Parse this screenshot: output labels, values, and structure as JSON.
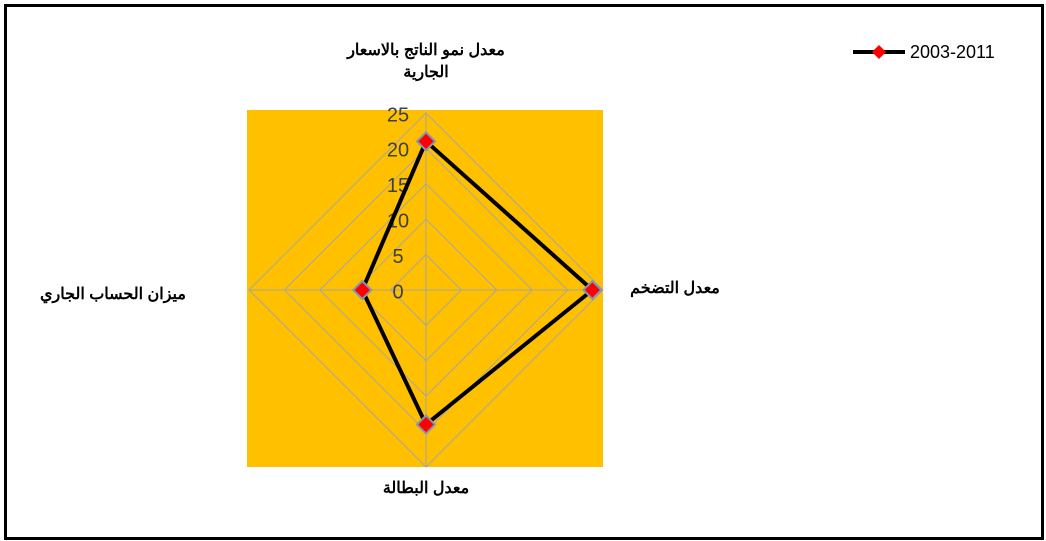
{
  "chart_data": {
    "type": "radar",
    "categories": [
      "معدل نمو الناتج بالاسعار الجارية",
      "معدل التضخم",
      "معدل البطالة",
      "ميزان الحساب الجاري"
    ],
    "series": [
      {
        "name": "2003-2011",
        "color": "#000000",
        "marker_color": "#ff0000",
        "values": [
          21,
          23.5,
          19,
          9
        ]
      }
    ],
    "ylim": [
      0,
      25
    ],
    "yticks": [
      0,
      5,
      10,
      15,
      20,
      25
    ],
    "grid": true,
    "legend": "top-right",
    "background": "#ffc000"
  }
}
